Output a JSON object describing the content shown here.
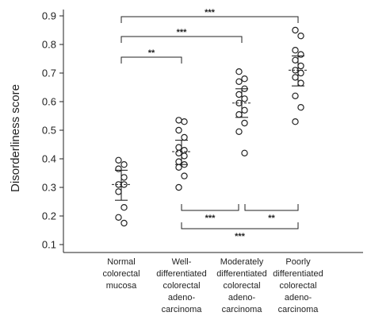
{
  "chart_data": {
    "type": "scatter",
    "ylabel": "Disorderliness score",
    "ylim": [
      0.1,
      0.9
    ],
    "yticks": [
      "0.1",
      "0.2",
      "0.3",
      "0.4",
      "0.5",
      "0.6",
      "0.7",
      "0.8",
      "0.9"
    ],
    "categories": [
      {
        "label_lines": [
          "Normal",
          "colorectal",
          "mucosa"
        ]
      },
      {
        "label_lines": [
          "Well-",
          "differentiated",
          "colorectal",
          "adeno-",
          "carcinoma"
        ]
      },
      {
        "label_lines": [
          "Moderately",
          "differentiated",
          "colorectal",
          "adeno-",
          "carcinoma"
        ]
      },
      {
        "label_lines": [
          "Poorly",
          "differentiated",
          "colorectal",
          "adeno-",
          "carcinoma"
        ]
      }
    ],
    "groups": [
      {
        "points": [
          0.395,
          0.38,
          0.365,
          0.335,
          0.31,
          0.31,
          0.285,
          0.23,
          0.195,
          0.175
        ],
        "mean": 0.31,
        "sd_upper": 0.36,
        "sd_lower": 0.255
      },
      {
        "points": [
          0.535,
          0.53,
          0.5,
          0.475,
          0.44,
          0.43,
          0.42,
          0.41,
          0.39,
          0.38,
          0.37,
          0.34,
          0.3
        ],
        "mean": 0.425,
        "sd_upper": 0.465,
        "sd_lower": 0.38
      },
      {
        "points": [
          0.705,
          0.68,
          0.67,
          0.645,
          0.625,
          0.61,
          0.595,
          0.57,
          0.555,
          0.525,
          0.495,
          0.42
        ],
        "mean": 0.595,
        "sd_upper": 0.645,
        "sd_lower": 0.545
      },
      {
        "points": [
          0.85,
          0.83,
          0.78,
          0.765,
          0.745,
          0.725,
          0.71,
          0.7,
          0.685,
          0.665,
          0.62,
          0.58,
          0.53
        ],
        "mean": 0.71,
        "sd_upper": 0.76,
        "sd_lower": 0.655
      }
    ],
    "significance": [
      {
        "from": 0,
        "to": 3,
        "label": "***",
        "position": "top"
      },
      {
        "from": 0,
        "to": 2,
        "label": "***",
        "position": "top"
      },
      {
        "from": 0,
        "to": 1,
        "label": "**",
        "position": "top"
      },
      {
        "from": 1,
        "to": 2,
        "label": "***",
        "position": "bottom"
      },
      {
        "from": 2,
        "to": 3,
        "label": "**",
        "position": "bottom"
      },
      {
        "from": 1,
        "to": 3,
        "label": "***",
        "position": "bottom"
      }
    ]
  }
}
